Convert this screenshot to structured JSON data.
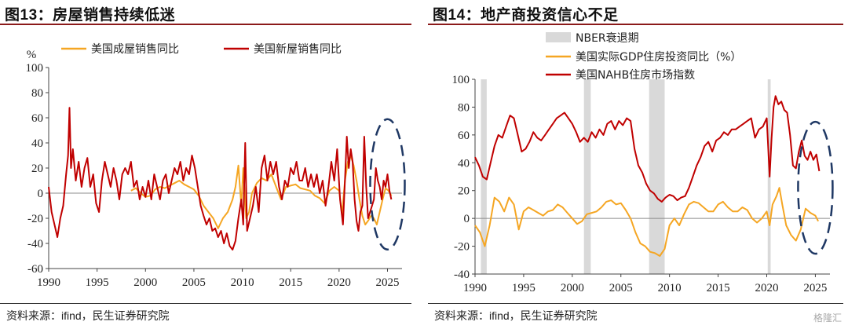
{
  "panels": [
    {
      "title": "图13：房屋销售持续低迷",
      "source": "资料来源：ifind，民生证券研究院"
    },
    {
      "title": "图14：地产商投资信心不足",
      "source": "资料来源：ifind，民生证券研究院"
    }
  ],
  "watermark": "格隆汇",
  "chart_data": [
    {
      "type": "line",
      "ylabel": "%",
      "ylim": [
        -60,
        100
      ],
      "yticks": [
        -60,
        -40,
        -20,
        0,
        20,
        40,
        60,
        80,
        100
      ],
      "xlim": [
        1990,
        2026.5
      ],
      "xticks": [
        1990,
        1995,
        2000,
        2005,
        2010,
        2015,
        2020,
        2025
      ],
      "legend_position": "top",
      "colors": {
        "existing": "#f5a623",
        "new": "#c00000",
        "ellipse": "#1f3864",
        "zero_line": "#8c8c8c"
      },
      "series": [
        {
          "name": "美国成屋销售同比",
          "color": "#f5a623",
          "x": [
            1998.5,
            1999,
            1999.5,
            2000,
            2000.5,
            2001,
            2001.5,
            2002,
            2002.5,
            2003,
            2003.5,
            2004,
            2004.5,
            2005,
            2005.5,
            2006,
            2006.5,
            2007,
            2007.5,
            2008,
            2008.5,
            2009,
            2009.3,
            2009.6,
            2009.9,
            2010.1,
            2010.4,
            2010.7,
            2011,
            2011.5,
            2012,
            2012.5,
            2013,
            2013.5,
            2014,
            2014.5,
            2015,
            2015.5,
            2016,
            2016.5,
            2017,
            2017.5,
            2018,
            2018.5,
            2019,
            2019.5,
            2020,
            2020.3,
            2020.6,
            2020.9,
            2021.2,
            2021.5,
            2021.8,
            2022.1,
            2022.4,
            2022.7,
            2023,
            2023.3,
            2023.6,
            2023.9,
            2024.2,
            2024.5,
            2024.8,
            2025.1,
            2025.4
          ],
          "y": [
            2,
            4,
            0,
            -3,
            -2,
            3,
            5,
            4,
            6,
            8,
            10,
            7,
            5,
            3,
            -2,
            -10,
            -15,
            -20,
            -28,
            -20,
            -15,
            -5,
            5,
            22,
            -10,
            20,
            -20,
            -15,
            0,
            8,
            12,
            10,
            15,
            5,
            -5,
            5,
            6,
            7,
            4,
            3,
            2,
            -2,
            -4,
            -8,
            2,
            5,
            2,
            -17,
            10,
            25,
            30,
            22,
            10,
            -5,
            -18,
            -25,
            -22,
            -18,
            -20,
            -25,
            -15,
            -5,
            4,
            2,
            -2
          ]
        },
        {
          "name": "美国新屋销售同比",
          "color": "#c00000",
          "x": [
            1990,
            1990.3,
            1990.6,
            1990.9,
            1991.2,
            1991.5,
            1991.8,
            1992,
            1992.15,
            1992.3,
            1992.5,
            1992.8,
            1993.1,
            1993.4,
            1993.7,
            1994,
            1994.3,
            1994.6,
            1994.9,
            1995.2,
            1995.5,
            1995.8,
            1996.1,
            1996.4,
            1996.7,
            1997,
            1997.3,
            1997.6,
            1997.9,
            1998.2,
            1998.5,
            1998.8,
            1999.1,
            1999.4,
            1999.7,
            2000,
            2000.3,
            2000.6,
            2000.9,
            2001.2,
            2001.5,
            2001.8,
            2002.1,
            2002.4,
            2002.7,
            2003,
            2003.3,
            2003.6,
            2003.9,
            2004.2,
            2004.5,
            2004.8,
            2005.1,
            2005.4,
            2005.7,
            2006,
            2006.3,
            2006.6,
            2006.9,
            2007.2,
            2007.5,
            2007.8,
            2008.1,
            2008.4,
            2008.7,
            2009,
            2009.3,
            2009.6,
            2009.9,
            2010.1,
            2010.3,
            2010.5,
            2010.8,
            2011.1,
            2011.4,
            2011.7,
            2012,
            2012.3,
            2012.6,
            2012.9,
            2013.2,
            2013.5,
            2013.8,
            2014.1,
            2014.4,
            2014.7,
            2015,
            2015.3,
            2015.6,
            2015.9,
            2016.2,
            2016.5,
            2016.8,
            2017.1,
            2017.4,
            2017.7,
            2018,
            2018.3,
            2018.6,
            2018.9,
            2019.2,
            2019.5,
            2019.8,
            2020.1,
            2020.4,
            2020.6,
            2020.8,
            2021,
            2021.2,
            2021.4,
            2021.6,
            2021.8,
            2022,
            2022.2,
            2022.4,
            2022.6,
            2022.8,
            2023,
            2023.2,
            2023.4,
            2023.6,
            2023.8,
            2024,
            2024.2,
            2024.4,
            2024.6,
            2024.8,
            2025,
            2025.2,
            2025.4
          ],
          "y": [
            5,
            -15,
            -25,
            -35,
            -20,
            -10,
            15,
            30,
            68,
            20,
            35,
            10,
            25,
            5,
            20,
            28,
            5,
            15,
            -8,
            -15,
            10,
            25,
            15,
            5,
            20,
            10,
            -5,
            15,
            20,
            15,
            25,
            5,
            10,
            -5,
            5,
            -3,
            10,
            -5,
            15,
            5,
            -5,
            10,
            15,
            0,
            10,
            20,
            15,
            25,
            10,
            20,
            15,
            30,
            20,
            5,
            -10,
            -18,
            -25,
            -20,
            -30,
            -28,
            -35,
            -30,
            -40,
            -32,
            -42,
            -45,
            -38,
            -20,
            -5,
            -25,
            40,
            -30,
            -20,
            -10,
            5,
            -15,
            20,
            30,
            10,
            25,
            15,
            25,
            5,
            -5,
            10,
            5,
            20,
            15,
            25,
            10,
            10,
            20,
            5,
            15,
            5,
            15,
            0,
            10,
            -10,
            5,
            25,
            10,
            35,
            -5,
            -25,
            10,
            45,
            20,
            35,
            25,
            -5,
            -22,
            -30,
            -15,
            -10,
            45,
            5,
            -20,
            -15,
            -10,
            -5,
            20,
            10,
            5,
            -5,
            10,
            5,
            15,
            2,
            -5
          ]
        }
      ]
    },
    {
      "type": "line",
      "ylim": [
        -40,
        100
      ],
      "yticks": [
        -40,
        -20,
        0,
        20,
        40,
        60,
        80,
        100
      ],
      "xlim": [
        1990,
        2026.5
      ],
      "xticks": [
        1990,
        1995,
        2000,
        2005,
        2010,
        2015,
        2020,
        2025
      ],
      "legend_position": "top-left",
      "colors": {
        "gdp": "#f5a623",
        "nahb": "#c00000",
        "recession": "#d9d9d9",
        "ellipse": "#1f3864",
        "zero_line": "#8c8c8c"
      },
      "recessions": {
        "name": "NBER衰退期",
        "color": "#d9d9d9",
        "periods": [
          [
            1990.6,
            1991.2
          ],
          [
            2001.2,
            2001.9
          ],
          [
            2007.9,
            2009.5
          ],
          [
            2020.1,
            2020.4
          ]
        ]
      },
      "series": [
        {
          "name": "美国实际GDP住房投资同比（%）",
          "color": "#f5a623",
          "x": [
            1990,
            1990.5,
            1991,
            1991.5,
            1992,
            1992.5,
            1993,
            1993.5,
            1994,
            1994.5,
            1995,
            1995.5,
            1996,
            1996.5,
            1997,
            1997.5,
            1998,
            1998.5,
            1999,
            1999.5,
            2000,
            2000.5,
            2001,
            2001.5,
            2002,
            2002.5,
            2003,
            2003.5,
            2004,
            2004.5,
            2005,
            2005.5,
            2006,
            2006.5,
            2007,
            2007.5,
            2008,
            2008.5,
            2009,
            2009.5,
            2010,
            2010.5,
            2011,
            2011.5,
            2012,
            2012.5,
            2013,
            2013.5,
            2014,
            2014.5,
            2015,
            2015.5,
            2016,
            2016.5,
            2017,
            2017.5,
            2018,
            2018.5,
            2019,
            2019.5,
            2020,
            2020.3,
            2020.6,
            2021,
            2021.3,
            2021.6,
            2022,
            2022.5,
            2023,
            2023.5,
            2024,
            2024.5,
            2025,
            2025.3
          ],
          "y": [
            -5,
            -10,
            -20,
            -5,
            15,
            12,
            5,
            15,
            10,
            -8,
            5,
            8,
            6,
            4,
            2,
            5,
            6,
            10,
            8,
            4,
            0,
            -4,
            -2,
            3,
            4,
            5,
            8,
            12,
            13,
            10,
            11,
            6,
            0,
            -10,
            -18,
            -20,
            -24,
            -25,
            -27,
            -22,
            -5,
            0,
            -5,
            3,
            10,
            12,
            11,
            8,
            5,
            5,
            10,
            12,
            8,
            5,
            5,
            8,
            6,
            0,
            -3,
            0,
            5,
            -5,
            10,
            16,
            22,
            10,
            -5,
            -12,
            -16,
            -8,
            7,
            4,
            2,
            -2
          ]
        },
        {
          "name": "美国NAHB住房市场指数",
          "color": "#c00000",
          "x": [
            1990,
            1990.4,
            1990.8,
            1991.2,
            1991.6,
            1992,
            1992.4,
            1992.8,
            1993.2,
            1993.6,
            1994,
            1994.4,
            1994.8,
            1995.2,
            1995.6,
            1996,
            1996.4,
            1996.8,
            1997.2,
            1997.6,
            1998,
            1998.4,
            1998.8,
            1999.2,
            1999.6,
            2000,
            2000.4,
            2000.8,
            2001.2,
            2001.6,
            2002,
            2002.4,
            2002.8,
            2003.2,
            2003.6,
            2004,
            2004.4,
            2004.8,
            2005.2,
            2005.6,
            2006,
            2006.4,
            2006.8,
            2007.2,
            2007.6,
            2008,
            2008.4,
            2008.8,
            2009.2,
            2009.6,
            2010,
            2010.4,
            2010.8,
            2011.2,
            2011.6,
            2012,
            2012.4,
            2012.8,
            2013.2,
            2013.6,
            2014,
            2014.4,
            2014.8,
            2015.2,
            2015.6,
            2016,
            2016.4,
            2016.8,
            2017.2,
            2017.6,
            2018,
            2018.4,
            2018.8,
            2019.2,
            2019.6,
            2020,
            2020.3,
            2020.5,
            2020.7,
            2020.9,
            2021.2,
            2021.5,
            2021.8,
            2022.1,
            2022.4,
            2022.7,
            2023,
            2023.3,
            2023.6,
            2023.9,
            2024.2,
            2024.5,
            2024.8,
            2025.1,
            2025.4
          ],
          "y": [
            44,
            38,
            30,
            28,
            40,
            52,
            60,
            58,
            66,
            74,
            72,
            60,
            48,
            50,
            55,
            62,
            58,
            56,
            60,
            64,
            68,
            72,
            74,
            76,
            72,
            68,
            62,
            55,
            58,
            55,
            62,
            58,
            64,
            60,
            68,
            70,
            64,
            70,
            67,
            72,
            70,
            50,
            38,
            33,
            25,
            20,
            18,
            14,
            12,
            15,
            17,
            16,
            13,
            15,
            16,
            22,
            30,
            38,
            44,
            52,
            55,
            48,
            56,
            58,
            62,
            60,
            64,
            64,
            66,
            68,
            70,
            72,
            58,
            64,
            66,
            72,
            30,
            58,
            80,
            88,
            82,
            84,
            78,
            76,
            60,
            38,
            36,
            48,
            56,
            45,
            42,
            48,
            42,
            46,
            34
          ]
        }
      ]
    }
  ]
}
